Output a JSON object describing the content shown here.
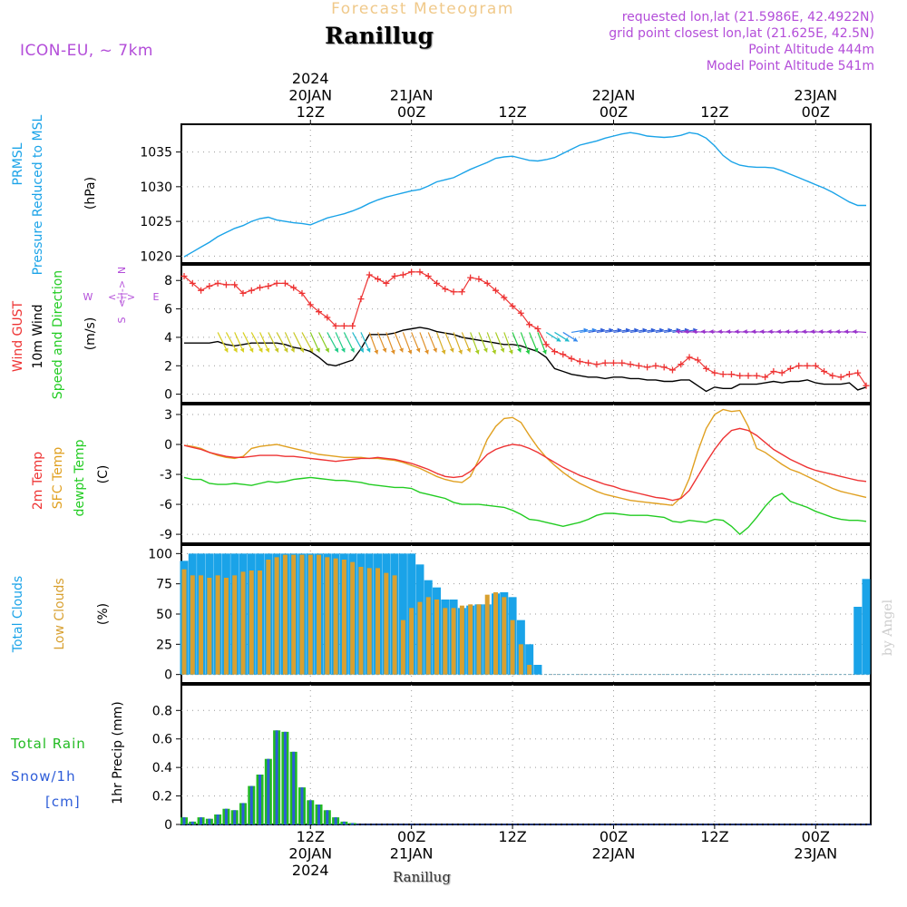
{
  "header": {
    "forecast_title": "Forecast Meteogram",
    "location": "Ranillug",
    "model": "ICON-EU, ~ 7km",
    "requested": "requested lon,lat (21.5986E, 42.4922N)",
    "gridpoint": "grid point closest lon,lat (21.625E, 42.5N)",
    "point_alt": "Point Altitude 444m",
    "model_alt": "Model Point Altitude 541m"
  },
  "footer": {
    "location": "Ranillug",
    "credit": "by Angel"
  },
  "colors": {
    "pressure": "#1aa3e8",
    "gust": "#ee3333",
    "wind": "#000000",
    "t2m": "#ee3333",
    "sfc": "#e0a020",
    "dew": "#22cc22",
    "total_clouds": "#1aa3e8",
    "low_clouds": "#d8a030",
    "rain": "#22bb22",
    "snow": "#2d5cd8",
    "label_purple": "#b34dd9"
  },
  "time_axis": {
    "top": [
      {
        "i": 15,
        "lines": [
          "2024",
          "20JAN",
          "12Z"
        ]
      },
      {
        "i": 27,
        "lines": [
          "21JAN",
          "00Z"
        ]
      },
      {
        "i": 39,
        "lines": [
          "12Z"
        ]
      },
      {
        "i": 51,
        "lines": [
          "22JAN",
          "00Z"
        ]
      },
      {
        "i": 63,
        "lines": [
          "12Z"
        ]
      },
      {
        "i": 75,
        "lines": [
          "23JAN",
          "00Z"
        ]
      }
    ],
    "bottom": [
      {
        "i": 15,
        "lines": [
          "12Z",
          "20JAN",
          "2024"
        ]
      },
      {
        "i": 27,
        "lines": [
          "00Z",
          "21JAN"
        ]
      },
      {
        "i": 39,
        "lines": [
          "12Z"
        ]
      },
      {
        "i": 51,
        "lines": [
          "00Z",
          "22JAN"
        ]
      },
      {
        "i": 63,
        "lines": [
          "12Z"
        ]
      },
      {
        "i": 75,
        "lines": [
          "00Z",
          "23JAN"
        ]
      }
    ]
  },
  "chart_data": [
    {
      "type": "line",
      "title": "PRMSL Pressure Reduced to MSL",
      "ylabel": "(hPa)",
      "ylim": [
        1019,
        1039
      ],
      "yticks": [
        1020,
        1025,
        1030,
        1035
      ],
      "series": [
        {
          "name": "PRMSL",
          "color": "pressure",
          "values": [
            1019.9,
            1020.6,
            1021.3,
            1022.0,
            1022.8,
            1023.4,
            1024.0,
            1024.4,
            1025.0,
            1025.4,
            1025.6,
            1025.2,
            1025.0,
            1024.8,
            1024.7,
            1024.5,
            1025.0,
            1025.5,
            1025.8,
            1026.1,
            1026.5,
            1027.0,
            1027.6,
            1028.1,
            1028.5,
            1028.8,
            1029.1,
            1029.4,
            1029.6,
            1030.1,
            1030.7,
            1031.0,
            1031.3,
            1031.9,
            1032.5,
            1033.0,
            1033.5,
            1034.1,
            1034.3,
            1034.4,
            1034.1,
            1033.8,
            1033.7,
            1033.9,
            1034.2,
            1034.8,
            1035.4,
            1036.0,
            1036.3,
            1036.6,
            1037.0,
            1037.3,
            1037.6,
            1037.8,
            1037.6,
            1037.3,
            1037.2,
            1037.1,
            1037.2,
            1037.4,
            1037.8,
            1037.6,
            1037.0,
            1035.9,
            1034.5,
            1033.6,
            1033.1,
            1032.9,
            1032.8,
            1032.8,
            1032.7,
            1032.3,
            1031.8,
            1031.3,
            1030.8,
            1030.3,
            1029.8,
            1029.2,
            1028.5,
            1027.8,
            1027.3,
            1027.3
          ]
        }
      ]
    },
    {
      "type": "line",
      "title": "Wind GUST, 10m Wind Speed and Direction",
      "ylabel": "(m/s)",
      "ylim": [
        -0.6,
        9.1
      ],
      "yticks": [
        0,
        2,
        4,
        6,
        8
      ],
      "direction_legend": {
        "w": "W",
        "e": "E",
        "n": "N",
        "s": "S",
        "arrow_h": "<-|->",
        "arrow_v": "<-|->"
      },
      "series": [
        {
          "name": "Wind GUST",
          "color": "gust",
          "marker": "+",
          "values": [
            8.3,
            7.8,
            7.3,
            7.6,
            7.8,
            7.7,
            7.7,
            7.1,
            7.3,
            7.5,
            7.6,
            7.8,
            7.8,
            7.5,
            7.1,
            6.3,
            5.8,
            5.4,
            4.8,
            4.8,
            4.8,
            6.7,
            8.4,
            8.1,
            7.8,
            8.3,
            8.4,
            8.6,
            8.6,
            8.3,
            7.8,
            7.4,
            7.2,
            7.2,
            8.2,
            8.1,
            7.8,
            7.3,
            6.8,
            6.2,
            5.7,
            4.9,
            4.6,
            3.5,
            3.0,
            2.8,
            2.5,
            2.3,
            2.2,
            2.1,
            2.2,
            2.2,
            2.2,
            2.1,
            2.0,
            1.9,
            2.0,
            1.9,
            1.7,
            2.1,
            2.6,
            2.4,
            1.8,
            1.5,
            1.4,
            1.4,
            1.3,
            1.3,
            1.3,
            1.2,
            1.6,
            1.5,
            1.8,
            2.0,
            2.0,
            2.0,
            1.6,
            1.3,
            1.2,
            1.4,
            1.5,
            0.6
          ]
        },
        {
          "name": "10m Wind",
          "color": "wind",
          "values": [
            3.6,
            3.6,
            3.6,
            3.6,
            3.7,
            3.5,
            3.4,
            3.5,
            3.6,
            3.6,
            3.6,
            3.6,
            3.5,
            3.3,
            3.2,
            3.0,
            2.6,
            2.1,
            2.0,
            2.2,
            2.4,
            3.2,
            4.2,
            4.2,
            4.2,
            4.3,
            4.5,
            4.6,
            4.7,
            4.6,
            4.4,
            4.3,
            4.2,
            4.0,
            3.9,
            3.8,
            3.7,
            3.6,
            3.5,
            3.5,
            3.4,
            3.2,
            3.0,
            2.6,
            1.8,
            1.6,
            1.4,
            1.3,
            1.2,
            1.2,
            1.1,
            1.2,
            1.2,
            1.1,
            1.1,
            1.0,
            1.0,
            0.9,
            0.9,
            1.0,
            1.0,
            0.6,
            0.2,
            0.5,
            0.4,
            0.4,
            0.7,
            0.7,
            0.7,
            0.8,
            0.9,
            0.8,
            0.9,
            0.9,
            1.0,
            0.8,
            0.7,
            0.7,
            0.7,
            0.8,
            0.3,
            0.5
          ]
        },
        {
          "name": "Speed and Direction",
          "color": "dew",
          "arrow_row_value": 4.35,
          "arrow_from": 4,
          "arrow_to": 81,
          "arrow_step": 1
        }
      ]
    },
    {
      "type": "line",
      "title": "2m Temp, SFC Temp, dewpt Temp",
      "ylabel": "(C)",
      "ylim": [
        -9.9,
        4.0
      ],
      "yticks": [
        3,
        0,
        -3,
        -6,
        -9
      ],
      "series": [
        {
          "name": "2m Temp",
          "color": "t2m",
          "values": [
            -0.1,
            -0.3,
            -0.5,
            -0.8,
            -1.0,
            -1.2,
            -1.3,
            -1.3,
            -1.2,
            -1.1,
            -1.1,
            -1.1,
            -1.2,
            -1.2,
            -1.3,
            -1.4,
            -1.5,
            -1.6,
            -1.7,
            -1.6,
            -1.5,
            -1.4,
            -1.4,
            -1.3,
            -1.4,
            -1.5,
            -1.7,
            -1.9,
            -2.2,
            -2.5,
            -2.9,
            -3.2,
            -3.3,
            -3.2,
            -2.7,
            -1.9,
            -1.0,
            -0.5,
            -0.2,
            0.0,
            -0.1,
            -0.4,
            -0.8,
            -1.3,
            -1.8,
            -2.3,
            -2.7,
            -3.1,
            -3.4,
            -3.7,
            -4.0,
            -4.2,
            -4.5,
            -4.7,
            -4.9,
            -5.1,
            -5.3,
            -5.4,
            -5.6,
            -5.4,
            -4.6,
            -3.2,
            -1.8,
            -0.5,
            0.6,
            1.4,
            1.6,
            1.4,
            0.9,
            0.2,
            -0.5,
            -1.0,
            -1.5,
            -1.9,
            -2.3,
            -2.6,
            -2.8,
            -3.0,
            -3.2,
            -3.4,
            -3.6,
            -3.7
          ]
        },
        {
          "name": "SFC Temp",
          "color": "sfc",
          "values": [
            -0.1,
            -0.2,
            -0.4,
            -0.8,
            -1.1,
            -1.3,
            -1.4,
            -1.2,
            -0.4,
            -0.2,
            -0.1,
            0.0,
            -0.2,
            -0.4,
            -0.6,
            -0.8,
            -1.0,
            -1.1,
            -1.2,
            -1.3,
            -1.3,
            -1.3,
            -1.4,
            -1.4,
            -1.5,
            -1.6,
            -1.8,
            -2.1,
            -2.4,
            -2.8,
            -3.2,
            -3.5,
            -3.7,
            -3.8,
            -3.2,
            -1.5,
            0.5,
            1.8,
            2.6,
            2.7,
            2.2,
            0.9,
            -0.3,
            -1.3,
            -2.1,
            -2.8,
            -3.4,
            -3.9,
            -4.3,
            -4.7,
            -5.0,
            -5.2,
            -5.4,
            -5.6,
            -5.7,
            -5.8,
            -5.9,
            -6.0,
            -6.1,
            -5.3,
            -3.4,
            -0.7,
            1.6,
            3.0,
            3.5,
            3.3,
            3.4,
            1.8,
            -0.4,
            -0.8,
            -1.4,
            -2.0,
            -2.5,
            -2.8,
            -3.2,
            -3.6,
            -4.0,
            -4.4,
            -4.7,
            -4.9,
            -5.1,
            -5.3
          ]
        },
        {
          "name": "dewpt Temp",
          "color": "dew",
          "values": [
            -3.3,
            -3.5,
            -3.5,
            -3.9,
            -4.0,
            -4.0,
            -3.9,
            -4.0,
            -4.1,
            -3.9,
            -3.7,
            -3.8,
            -3.7,
            -3.5,
            -3.4,
            -3.3,
            -3.4,
            -3.5,
            -3.6,
            -3.6,
            -3.7,
            -3.8,
            -4.0,
            -4.1,
            -4.2,
            -4.3,
            -4.3,
            -4.4,
            -4.8,
            -5.0,
            -5.2,
            -5.4,
            -5.8,
            -6.0,
            -6.0,
            -6.0,
            -6.1,
            -6.2,
            -6.3,
            -6.6,
            -7.0,
            -7.5,
            -7.6,
            -7.8,
            -8.0,
            -8.2,
            -8.0,
            -7.8,
            -7.5,
            -7.1,
            -6.9,
            -6.9,
            -7.0,
            -7.1,
            -7.1,
            -7.1,
            -7.2,
            -7.3,
            -7.7,
            -7.8,
            -7.6,
            -7.7,
            -7.8,
            -7.5,
            -7.6,
            -8.2,
            -9.0,
            -8.3,
            -7.3,
            -6.2,
            -5.3,
            -4.9,
            -5.7,
            -6.0,
            -6.3,
            -6.7,
            -7.0,
            -7.3,
            -7.5,
            -7.6,
            -7.6,
            -7.7
          ]
        }
      ]
    },
    {
      "type": "bar",
      "title": "Total Clouds, Low Clouds",
      "ylabel": "(%)",
      "ylim": [
        -7,
        107
      ],
      "yticks": [
        100,
        75,
        50,
        25,
        0
      ],
      "series": [
        {
          "name": "Total Clouds",
          "color": "total_clouds",
          "values": [
            94,
            100,
            100,
            100,
            100,
            100,
            100,
            100,
            100,
            100,
            100,
            100,
            100,
            100,
            100,
            100,
            100,
            100,
            100,
            100,
            100,
            100,
            100,
            100,
            100,
            100,
            100,
            100,
            91,
            78,
            72,
            62,
            62,
            55,
            57,
            58,
            58,
            67,
            68,
            64,
            45,
            25,
            8,
            0,
            0,
            0,
            0,
            0,
            0,
            0,
            0,
            0,
            0,
            0,
            0,
            0,
            0,
            0,
            0,
            0,
            0,
            0,
            0,
            0,
            0,
            0,
            0,
            0,
            0,
            0,
            0,
            0,
            0,
            0,
            0,
            0,
            0,
            0,
            0,
            0,
            56,
            79
          ]
        },
        {
          "name": "Low Clouds",
          "color": "low_clouds",
          "values": [
            87,
            82,
            82,
            80,
            82,
            80,
            82,
            85,
            86,
            86,
            95,
            97,
            99,
            99,
            99,
            99,
            99,
            97,
            96,
            95,
            93,
            89,
            88,
            88,
            84,
            82,
            45,
            55,
            60,
            64,
            62,
            55,
            55,
            57,
            58,
            58,
            66,
            68,
            64,
            45,
            25,
            8,
            0,
            0,
            0,
            0,
            0,
            0,
            0,
            0,
            0,
            0,
            0,
            0,
            0,
            0,
            0,
            0,
            0,
            0,
            0,
            0,
            0,
            0,
            0,
            0,
            0,
            0,
            0,
            0,
            0,
            0,
            0,
            0,
            0,
            0,
            0,
            0,
            0,
            0,
            0,
            0
          ]
        }
      ]
    },
    {
      "type": "bar",
      "title": "Total Rain, Snow/1h [cm]",
      "ylabel": "1hr Precip (mm)",
      "ylim": [
        0,
        0.98
      ],
      "yticks": [
        0.8,
        0.6,
        0.4,
        0.2,
        0
      ],
      "series": [
        {
          "name": "Total Rain",
          "color": "rain",
          "values": [
            0.05,
            0.02,
            0.05,
            0.04,
            0.07,
            0.11,
            0.1,
            0.15,
            0.27,
            0.35,
            0.46,
            0.66,
            0.65,
            0.51,
            0.26,
            0.17,
            0.14,
            0.1,
            0.05,
            0.02,
            0.01,
            0,
            0,
            0,
            0,
            0,
            0,
            0,
            0,
            0,
            0,
            0,
            0,
            0,
            0,
            0,
            0,
            0,
            0,
            0,
            0,
            0,
            0,
            0,
            0,
            0,
            0,
            0,
            0,
            0,
            0,
            0,
            0,
            0,
            0,
            0,
            0,
            0,
            0,
            0,
            0,
            0,
            0,
            0,
            0,
            0,
            0,
            0,
            0,
            0,
            0,
            0,
            0,
            0,
            0,
            0,
            0,
            0,
            0,
            0,
            0,
            0
          ]
        },
        {
          "name": "Snow/1h",
          "color": "snow",
          "values": [
            0.05,
            0.02,
            0.05,
            0.04,
            0.07,
            0.11,
            0.1,
            0.15,
            0.27,
            0.35,
            0.46,
            0.66,
            0.65,
            0.51,
            0.26,
            0.17,
            0.14,
            0.1,
            0.05,
            0.02,
            0.01,
            0,
            0,
            0,
            0,
            0,
            0,
            0,
            0,
            0,
            0,
            0,
            0,
            0,
            0,
            0,
            0,
            0,
            0,
            0,
            0,
            0,
            0,
            0,
            0,
            0,
            0,
            0,
            0,
            0,
            0,
            0,
            0,
            0,
            0,
            0,
            0,
            0,
            0,
            0,
            0,
            0,
            0,
            0,
            0,
            0,
            0,
            0,
            0,
            0,
            0,
            0,
            0,
            0,
            0,
            0,
            0,
            0,
            0,
            0,
            0,
            0
          ]
        }
      ]
    }
  ]
}
